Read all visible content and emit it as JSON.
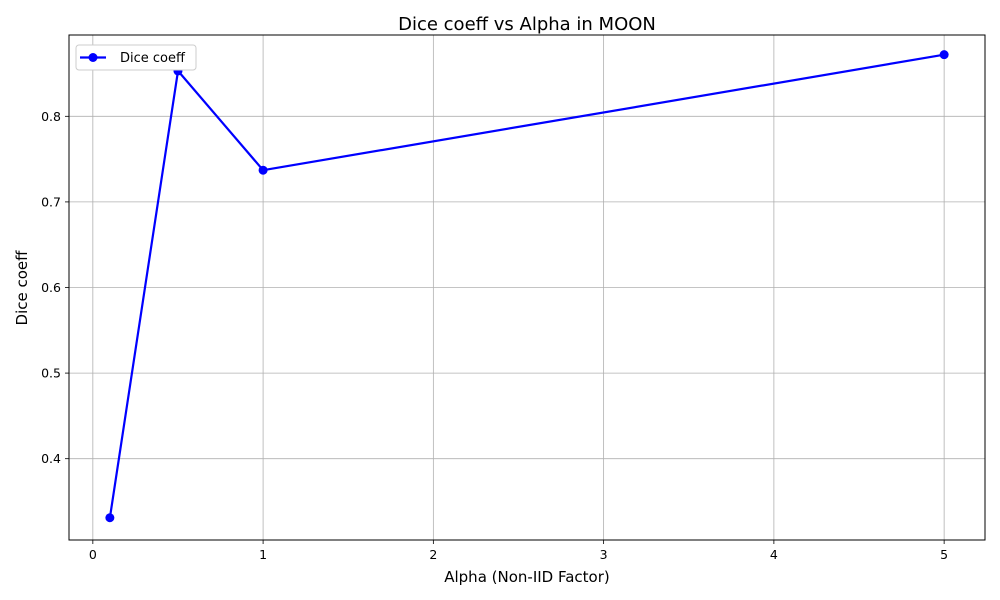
{
  "chart_data": {
    "type": "line",
    "title": "Dice coeff vs Alpha in MOON",
    "xlabel": "Alpha (Non-IID Factor)",
    "ylabel": "Dice coeff",
    "xlim": [
      -0.14,
      5.24
    ],
    "ylim": [
      0.305,
      0.895
    ],
    "xticks": [
      0,
      1,
      2,
      3,
      4,
      5
    ],
    "yticks": [
      0.4,
      0.5,
      0.6,
      0.7,
      0.8
    ],
    "xtick_labels": [
      "0",
      "1",
      "2",
      "3",
      "4",
      "5"
    ],
    "ytick_labels": [
      "0.4",
      "0.5",
      "0.6",
      "0.7",
      "0.8"
    ],
    "grid": true,
    "legend": {
      "position": "upper-left"
    },
    "series": [
      {
        "name": "Dice coeff",
        "color": "#0000ff",
        "marker": "circle",
        "x": [
          0.1,
          0.5,
          1,
          5
        ],
        "y": [
          0.331,
          0.853,
          0.737,
          0.872
        ]
      }
    ]
  }
}
